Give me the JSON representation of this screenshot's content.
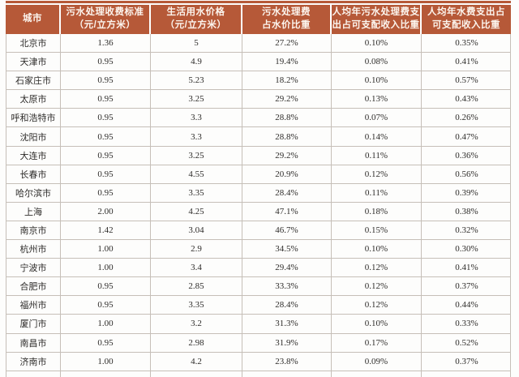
{
  "table": {
    "columns": [
      {
        "label": "城市"
      },
      {
        "label": "污水处理收费标准\n（元/立方米）"
      },
      {
        "label": "生活用水价格\n（元/立方米）"
      },
      {
        "label": "污水处理费\n占水价比重"
      },
      {
        "label": "人均年污水处理费支\n出占可支配收入比重"
      },
      {
        "label": "人均年水费支出占\n可支配收入比重"
      }
    ],
    "rows": [
      [
        "北京市",
        "1.36",
        "5",
        "27.2%",
        "0.10%",
        "0.35%"
      ],
      [
        "天津市",
        "0.95",
        "4.9",
        "19.4%",
        "0.08%",
        "0.41%"
      ],
      [
        "石家庄市",
        "0.95",
        "5.23",
        "18.2%",
        "0.10%",
        "0.57%"
      ],
      [
        "太原市",
        "0.95",
        "3.25",
        "29.2%",
        "0.13%",
        "0.43%"
      ],
      [
        "呼和浩特市",
        "0.95",
        "3.3",
        "28.8%",
        "0.07%",
        "0.26%"
      ],
      [
        "沈阳市",
        "0.95",
        "3.3",
        "28.8%",
        "0.14%",
        "0.47%"
      ],
      [
        "大连市",
        "0.95",
        "3.25",
        "29.2%",
        "0.11%",
        "0.36%"
      ],
      [
        "长春市",
        "0.95",
        "4.55",
        "20.9%",
        "0.12%",
        "0.56%"
      ],
      [
        "哈尔滨市",
        "0.95",
        "3.35",
        "28.4%",
        "0.11%",
        "0.39%"
      ],
      [
        "上海",
        "2.00",
        "4.25",
        "47.1%",
        "0.18%",
        "0.38%"
      ],
      [
        "南京市",
        "1.42",
        "3.04",
        "46.7%",
        "0.15%",
        "0.32%"
      ],
      [
        "杭州市",
        "1.00",
        "2.9",
        "34.5%",
        "0.10%",
        "0.30%"
      ],
      [
        "宁波市",
        "1.00",
        "3.4",
        "29.4%",
        "0.12%",
        "0.41%"
      ],
      [
        "合肥市",
        "0.95",
        "2.85",
        "33.3%",
        "0.12%",
        "0.37%"
      ],
      [
        "福州市",
        "0.95",
        "3.35",
        "28.4%",
        "0.12%",
        "0.44%"
      ],
      [
        "厦门市",
        "1.00",
        "3.2",
        "31.3%",
        "0.10%",
        "0.33%"
      ],
      [
        "南昌市",
        "0.95",
        "2.98",
        "31.9%",
        "0.17%",
        "0.52%"
      ],
      [
        "济南市",
        "1.00",
        "4.2",
        "23.8%",
        "0.09%",
        "0.37%"
      ]
    ]
  },
  "colors": {
    "header_bg": "#B65938",
    "header_text": "#FCF5EE",
    "grid_line": "#C6BFB8",
    "body_text": "#2E2C2A",
    "page_bg": "#FDFDFC"
  }
}
